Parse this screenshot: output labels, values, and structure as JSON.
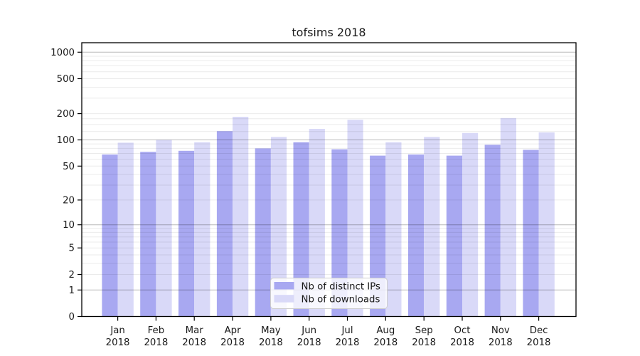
{
  "chart_data": {
    "type": "bar",
    "title": "tofsims 2018",
    "x_categories": [
      {
        "month": "Jan",
        "year": "2018"
      },
      {
        "month": "Feb",
        "year": "2018"
      },
      {
        "month": "Mar",
        "year": "2018"
      },
      {
        "month": "Apr",
        "year": "2018"
      },
      {
        "month": "May",
        "year": "2018"
      },
      {
        "month": "Jun",
        "year": "2018"
      },
      {
        "month": "Jul",
        "year": "2018"
      },
      {
        "month": "Aug",
        "year": "2018"
      },
      {
        "month": "Sep",
        "year": "2018"
      },
      {
        "month": "Oct",
        "year": "2018"
      },
      {
        "month": "Nov",
        "year": "2018"
      },
      {
        "month": "Dec",
        "year": "2018"
      }
    ],
    "series": [
      {
        "name": "Nb of distinct IPs",
        "slug": "distinct-ips",
        "color": "#a8a8f1",
        "values": [
          68,
          73,
          75,
          126,
          80,
          94,
          78,
          66,
          68,
          66,
          88,
          77
        ]
      },
      {
        "name": "Nb of downloads",
        "slug": "downloads",
        "color": "#d9d9f8",
        "values": [
          93,
          100,
          94,
          184,
          108,
          134,
          170,
          94,
          108,
          120,
          178,
          122
        ]
      }
    ],
    "y_scale": "log10(value+1)",
    "ylim": [
      0,
      1280
    ],
    "y_tick_values": [
      1000,
      500,
      200,
      100,
      50,
      20,
      10,
      5,
      2,
      1,
      0
    ],
    "y_tick_labels": [
      "1000",
      "500",
      "200",
      "100",
      "50",
      "20",
      "10",
      "5",
      "2",
      "1",
      "0"
    ],
    "y_major_gridlines": [
      1,
      10,
      100,
      1000
    ],
    "y_minor_gridlines": [
      2,
      3,
      4,
      5,
      6,
      7,
      8,
      9,
      20,
      30,
      40,
      50,
      60,
      70,
      80,
      90,
      125,
      150,
      175,
      200,
      300,
      400,
      500,
      600,
      700,
      800,
      900
    ],
    "grid": true,
    "legend": {
      "position": "lower center",
      "labels": [
        "Nb of distinct IPs",
        "Nb of downloads"
      ]
    }
  },
  "colors": {
    "background": "#ffffff",
    "bar_distinct_ips": "#a8a8f1",
    "bar_downloads": "#d9d9f8",
    "spine": "#000000",
    "legend_border": "#cccccc"
  }
}
